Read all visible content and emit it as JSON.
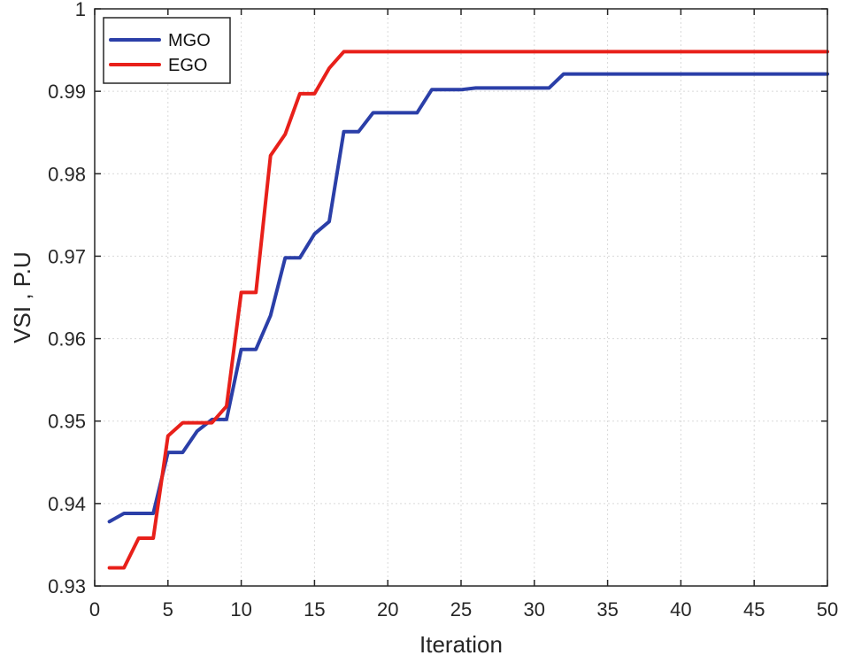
{
  "chart_data": {
    "type": "line",
    "title": "",
    "xlabel": "Iteration",
    "ylabel": "VSI , P.U",
    "xlim": [
      0,
      50
    ],
    "ylim": [
      0.93,
      1
    ],
    "xticks": [
      0,
      5,
      10,
      15,
      20,
      25,
      30,
      35,
      40,
      45,
      50
    ],
    "yticks": [
      0.93,
      0.94,
      0.95,
      0.96,
      0.97,
      0.98,
      0.99,
      1
    ],
    "xtick_labels": [
      "0",
      "5",
      "10",
      "15",
      "20",
      "25",
      "30",
      "35",
      "40",
      "45",
      "50"
    ],
    "ytick_labels": [
      "0.93",
      "0.94",
      "0.95",
      "0.96",
      "0.97",
      "0.98",
      "0.99",
      "1"
    ],
    "grid": true,
    "legend_position": "top-left",
    "series": [
      {
        "name": "MGO",
        "color": "#2b3fa8",
        "x": [
          1,
          2,
          3,
          4,
          5,
          6,
          7,
          8,
          9,
          10,
          11,
          12,
          13,
          14,
          15,
          16,
          17,
          18,
          19,
          20,
          21,
          22,
          23,
          24,
          25,
          26,
          27,
          28,
          29,
          30,
          31,
          32,
          33,
          34,
          35,
          36,
          37,
          38,
          39,
          40,
          41,
          42,
          43,
          44,
          45,
          46,
          47,
          48,
          49,
          50
        ],
        "values": [
          0.9378,
          0.9388,
          0.9388,
          0.9388,
          0.9462,
          0.9462,
          0.9488,
          0.9502,
          0.9502,
          0.9587,
          0.9587,
          0.9628,
          0.9698,
          0.9698,
          0.9727,
          0.9742,
          0.9851,
          0.9851,
          0.9874,
          0.9874,
          0.9874,
          0.9874,
          0.9902,
          0.9902,
          0.9902,
          0.9904,
          0.9904,
          0.9904,
          0.9904,
          0.9904,
          0.9904,
          0.9921,
          0.9921,
          0.9921,
          0.9921,
          0.9921,
          0.9921,
          0.9921,
          0.9921,
          0.9921,
          0.9921,
          0.9921,
          0.9921,
          0.9921,
          0.9921,
          0.9921,
          0.9921,
          0.9921,
          0.9921,
          0.9921
        ]
      },
      {
        "name": "EGO",
        "color": "#e8201a",
        "x": [
          1,
          2,
          3,
          4,
          5,
          6,
          7,
          8,
          9,
          10,
          11,
          12,
          13,
          14,
          15,
          16,
          17,
          18,
          19,
          20,
          21,
          22,
          23,
          24,
          25,
          26,
          27,
          28,
          29,
          30,
          31,
          32,
          33,
          34,
          35,
          36,
          37,
          38,
          39,
          40,
          41,
          42,
          43,
          44,
          45,
          46,
          47,
          48,
          49,
          50
        ],
        "values": [
          0.9322,
          0.9322,
          0.9358,
          0.9358,
          0.9482,
          0.9498,
          0.9498,
          0.9498,
          0.9518,
          0.9656,
          0.9656,
          0.9822,
          0.9848,
          0.9897,
          0.9897,
          0.9928,
          0.9948,
          0.9948,
          0.9948,
          0.9948,
          0.9948,
          0.9948,
          0.9948,
          0.9948,
          0.9948,
          0.9948,
          0.9948,
          0.9948,
          0.9948,
          0.9948,
          0.9948,
          0.9948,
          0.9948,
          0.9948,
          0.9948,
          0.9948,
          0.9948,
          0.9948,
          0.9948,
          0.9948,
          0.9948,
          0.9948,
          0.9948,
          0.9948,
          0.9948,
          0.9948,
          0.9948,
          0.9948,
          0.9948,
          0.9948
        ]
      }
    ]
  }
}
